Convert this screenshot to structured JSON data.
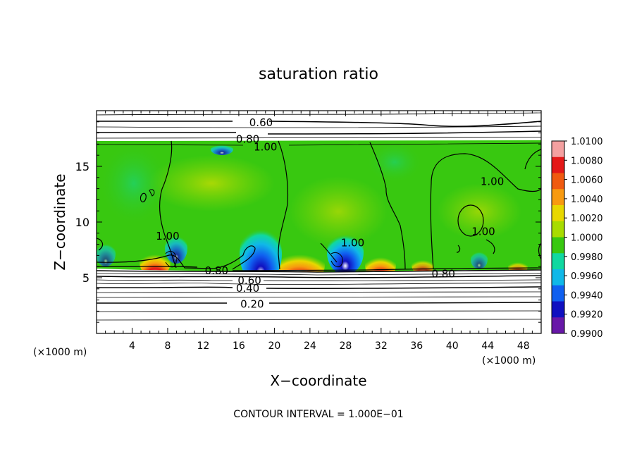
{
  "chart_data": {
    "type": "heatmap",
    "title": "saturation ratio",
    "xlabel": "X−coordinate",
    "ylabel": "Z−coordinate",
    "x_unit_left": "(×1000 m)",
    "x_unit_right": "(×1000 m)",
    "footer": "CONTOUR INTERVAL = 1.000E−01",
    "xlim": [
      0,
      50
    ],
    "ylim": [
      0,
      20
    ],
    "x_ticks": [
      4,
      8,
      12,
      16,
      20,
      24,
      28,
      32,
      36,
      40,
      44,
      48
    ],
    "x_tick_labels": [
      "4",
      "8",
      "12",
      "16",
      "20",
      "24",
      "28",
      "32",
      "36",
      "40",
      "44",
      "48"
    ],
    "y_ticks": [
      5,
      10,
      15
    ],
    "y_tick_labels": [
      "5",
      "10",
      "15"
    ],
    "colorbar": {
      "min": 0.99,
      "max": 1.01,
      "labels": [
        "1.0100",
        "1.0080",
        "1.0060",
        "1.0040",
        "1.0020",
        "1.0000",
        "0.9980",
        "0.9960",
        "0.9940",
        "0.9920",
        "0.9900"
      ],
      "colors": [
        "#f4a0a0",
        "#e41818",
        "#f05a10",
        "#f89a10",
        "#e8d800",
        "#a8dc00",
        "#38c810",
        "#10d8a0",
        "#10b8e8",
        "#1060f0",
        "#1010c0",
        "#6818a8"
      ]
    },
    "contour_labels": [
      {
        "text": "0.60",
        "x": 18.5,
        "y": 19.0
      },
      {
        "text": "0.80",
        "x": 17.0,
        "y": 17.5
      },
      {
        "text": "1.00",
        "x": 19.0,
        "y": 16.8
      },
      {
        "text": "1.00",
        "x": 44.5,
        "y": 13.7
      },
      {
        "text": "1.00",
        "x": 43.5,
        "y": 9.2
      },
      {
        "text": "1.00",
        "x": 28.8,
        "y": 8.2
      },
      {
        "text": "1.00",
        "x": 8.0,
        "y": 8.8
      },
      {
        "text": "0.80",
        "x": 13.5,
        "y": 5.7
      },
      {
        "text": "0.80",
        "x": 39.0,
        "y": 5.4
      },
      {
        "text": "0.60",
        "x": 17.2,
        "y": 4.8
      },
      {
        "text": "0.40",
        "x": 17.0,
        "y": 4.1
      },
      {
        "text": "0.20",
        "x": 17.5,
        "y": 2.7
      }
    ]
  }
}
